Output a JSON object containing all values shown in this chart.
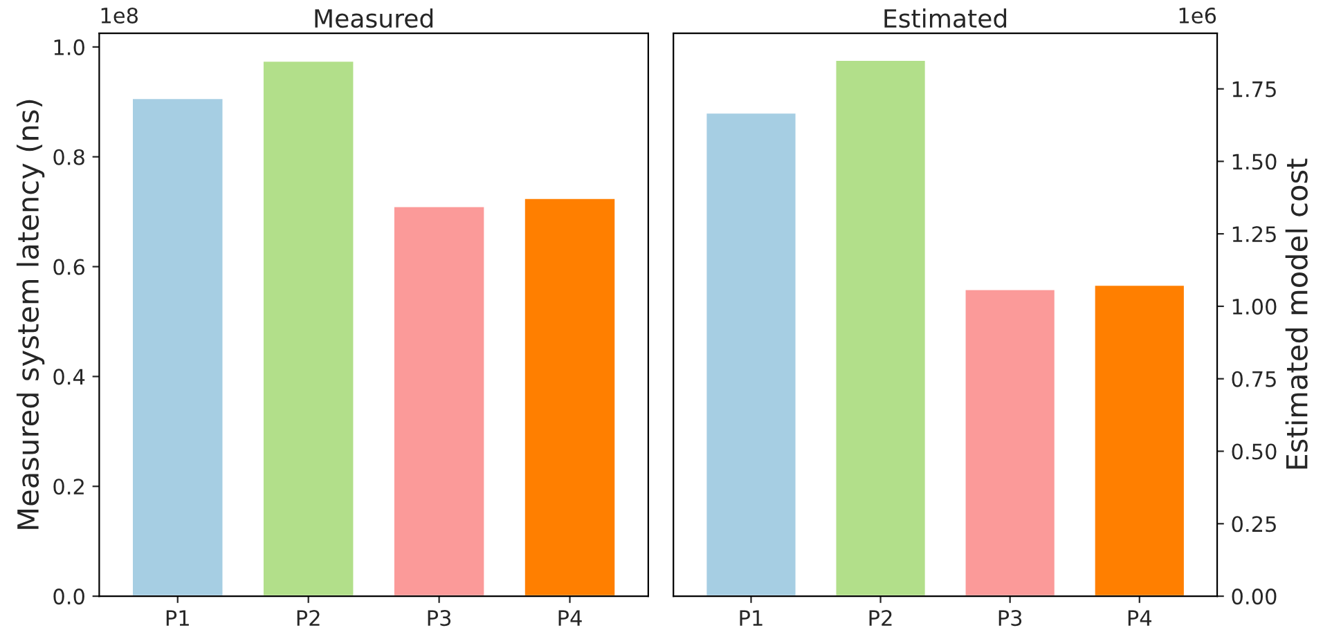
{
  "chart_data": [
    {
      "type": "bar",
      "title": "Measured",
      "ylabel": "Measured system latency (ns)",
      "categories": [
        "P1",
        "P2",
        "P3",
        "P4"
      ],
      "values": [
        0.907,
        0.975,
        0.71,
        0.725
      ],
      "colors": [
        "#a6cee3",
        "#b2df8a",
        "#fb9a99",
        "#ff7f00"
      ],
      "ylim": [
        0,
        1.025
      ],
      "yticks": [
        {
          "value": 0,
          "label": "0.0"
        },
        0.2,
        0.4,
        0.6,
        0.8,
        {
          "value": 1,
          "label": "1.0"
        }
      ],
      "annotations": [
        "1e8"
      ]
    },
    {
      "type": "bar",
      "title": "Estimated",
      "y2label": "Estimated model cost",
      "categories": [
        "P1",
        "P2",
        "P3",
        "P4"
      ],
      "series": [
        {
          "values": [
            1.668,
            1.85,
            1.059,
            1.074
          ],
          "colors": [
            "#a6cee3",
            "#b2df8a",
            "#fb9a99",
            "#ff7f00"
          ],
          "axis": "y2"
        }
      ],
      "y2lim": [
        0,
        1.942
      ],
      "y2ticks": [
        {
          "value": 0,
          "label": "0.00"
        },
        0.25,
        {
          "value": 0.5,
          "label": "0.50"
        },
        0.75,
        {
          "value": 1,
          "label": "1.00"
        },
        1.25,
        {
          "value": 1.5,
          "label": "1.50"
        },
        1.75
      ],
      "annotations": [
        "1e6"
      ]
    }
  ]
}
